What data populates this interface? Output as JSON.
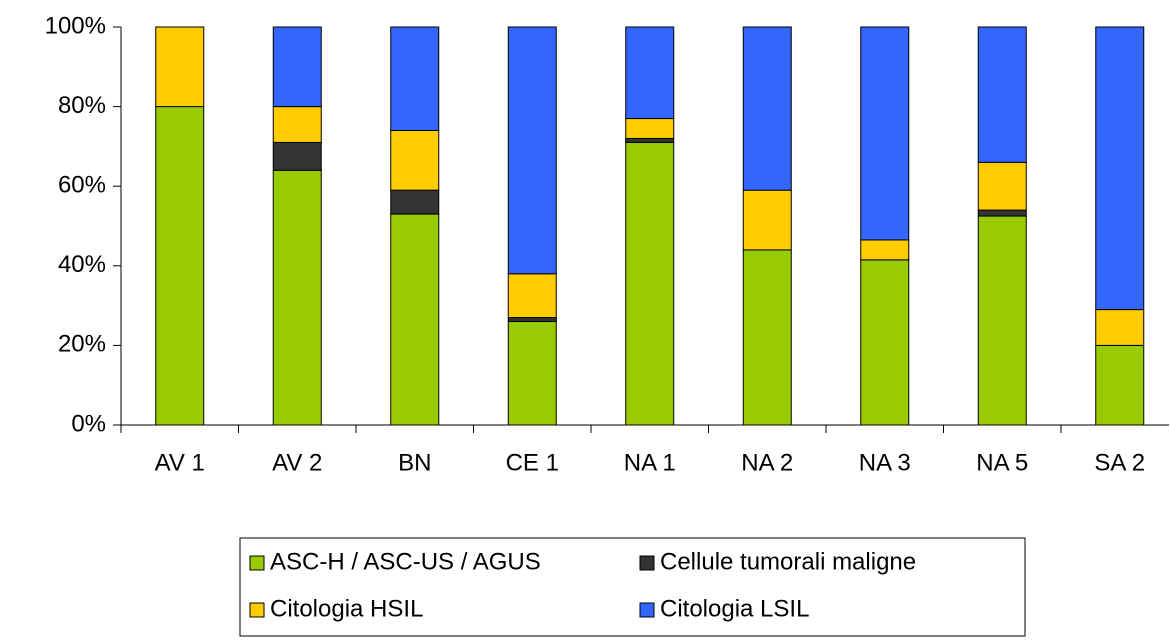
{
  "chart_data": {
    "type": "bar",
    "stacked": true,
    "categories": [
      "AV 1",
      "AV 2",
      "BN",
      "CE 1",
      "NA 1",
      "NA 2",
      "NA 3",
      "NA 5",
      "SA 2"
    ],
    "series": [
      {
        "name": "ASC-H / ASC-US / AGUS",
        "color": "#99cc00",
        "values": [
          80,
          64,
          53,
          26,
          71,
          44,
          41.5,
          52.5,
          20
        ]
      },
      {
        "name": "Cellule tumorali maligne",
        "color": "#333333",
        "values": [
          0,
          7,
          6,
          1,
          1,
          0,
          0,
          1.5,
          0
        ]
      },
      {
        "name": "Citologia HSIL",
        "color": "#ffcc00",
        "values": [
          20,
          9,
          15,
          11,
          5,
          15,
          5,
          12,
          9
        ]
      },
      {
        "name": "Citologia LSIL",
        "color": "#3366ff",
        "values": [
          0,
          20,
          26,
          62,
          23,
          41,
          53.5,
          34,
          71
        ]
      }
    ],
    "ylim": [
      0,
      100
    ],
    "yticks": [
      {
        "value": 0,
        "label": "0%"
      },
      {
        "value": 20,
        "label": "20%"
      },
      {
        "value": 40,
        "label": "40%"
      },
      {
        "value": 60,
        "label": "60%"
      },
      {
        "value": 80,
        "label": "80%"
      },
      {
        "value": 100,
        "label": "100%"
      }
    ],
    "grid": false,
    "legend": "bottom"
  }
}
